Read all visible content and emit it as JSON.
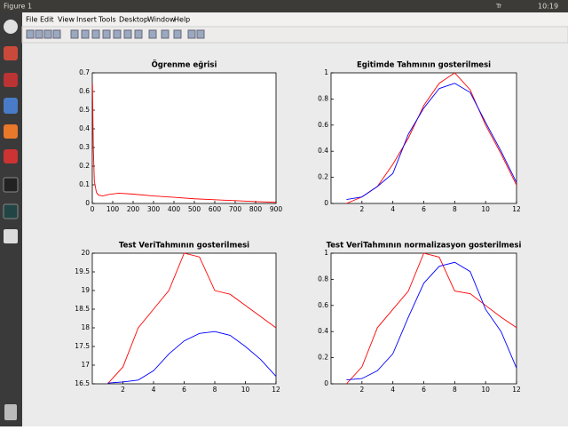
{
  "window": {
    "title": "Figure 1",
    "indicator": "Tr",
    "clock": "10:19",
    "menu": [
      "File",
      "Edit",
      "View",
      "Insert",
      "Tools",
      "Desktop",
      "Window",
      "Help"
    ]
  },
  "chart_data": [
    {
      "type": "line",
      "title": "Ögrenme eğrisi",
      "x": [
        1,
        5,
        10,
        20,
        30,
        50,
        80,
        130,
        200,
        300,
        400,
        500,
        600,
        700,
        800,
        900
      ],
      "series": [
        {
          "color": "#ff0000",
          "values": [
            0.64,
            0.3,
            0.12,
            0.06,
            0.045,
            0.04,
            0.048,
            0.055,
            0.05,
            0.04,
            0.033,
            0.025,
            0.02,
            0.015,
            0.01,
            0.006
          ]
        }
      ],
      "xlim": [
        0,
        900
      ],
      "xticks": [
        0,
        100,
        200,
        300,
        400,
        500,
        600,
        700,
        800,
        900
      ],
      "ylim": [
        0,
        0.7
      ],
      "yticks": [
        0,
        0.1,
        0.2,
        0.3,
        0.4,
        0.5,
        0.6,
        0.7
      ]
    },
    {
      "type": "line",
      "title": "Egitimde Tahmının gosterilmesi",
      "x": [
        1,
        2,
        3,
        4,
        5,
        6,
        7,
        8,
        9,
        10,
        11,
        12
      ],
      "series": [
        {
          "color": "#ff0000",
          "values": [
            0,
            0.05,
            0.13,
            0.3,
            0.5,
            0.75,
            0.92,
            1.0,
            0.87,
            0.6,
            0.38,
            0.14
          ]
        },
        {
          "color": "#0000ff",
          "values": [
            0.03,
            0.05,
            0.13,
            0.23,
            0.53,
            0.73,
            0.88,
            0.92,
            0.85,
            0.62,
            0.4,
            0.16
          ]
        }
      ],
      "xlim": [
        0,
        12
      ],
      "xticks": [
        2,
        4,
        6,
        8,
        10,
        12
      ],
      "ylim": [
        0,
        1
      ],
      "yticks": [
        0,
        0.2,
        0.4,
        0.6,
        0.8,
        1
      ]
    },
    {
      "type": "line",
      "title": "Test VeriTahmının  gosterilmesi",
      "x": [
        1,
        2,
        3,
        4,
        5,
        6,
        7,
        8,
        9,
        10,
        11,
        12
      ],
      "series": [
        {
          "color": "#ff0000",
          "values": [
            16.5,
            16.95,
            18,
            18.5,
            19,
            20,
            19.9,
            19,
            18.9,
            18.6,
            18.3,
            18
          ]
        },
        {
          "color": "#0000ff",
          "values": [
            16.52,
            16.55,
            16.6,
            16.85,
            17.3,
            17.65,
            17.85,
            17.9,
            17.8,
            17.5,
            17.15,
            16.7
          ]
        }
      ],
      "xlim": [
        0,
        12
      ],
      "xticks": [
        2,
        4,
        6,
        8,
        10,
        12
      ],
      "ylim": [
        16.5,
        20
      ],
      "yticks": [
        16.5,
        17,
        17.5,
        18,
        18.5,
        19,
        19.5,
        20
      ]
    },
    {
      "type": "line",
      "title": "Test VeriTahmının  normalizasyon gosterilmesi",
      "x": [
        1,
        2,
        3,
        4,
        5,
        6,
        7,
        8,
        9,
        10,
        11,
        12
      ],
      "series": [
        {
          "color": "#ff0000",
          "values": [
            0,
            0.13,
            0.43,
            0.57,
            0.71,
            1.0,
            0.97,
            0.71,
            0.69,
            0.6,
            0.51,
            0.43
          ]
        },
        {
          "color": "#0000ff",
          "values": [
            0.03,
            0.04,
            0.1,
            0.23,
            0.51,
            0.77,
            0.9,
            0.93,
            0.86,
            0.57,
            0.4,
            0.12
          ]
        }
      ],
      "xlim": [
        0,
        12
      ],
      "xticks": [
        2,
        4,
        6,
        8,
        10,
        12
      ],
      "ylim": [
        0,
        1
      ],
      "yticks": [
        0,
        0.2,
        0.4,
        0.6,
        0.8,
        1
      ]
    }
  ]
}
